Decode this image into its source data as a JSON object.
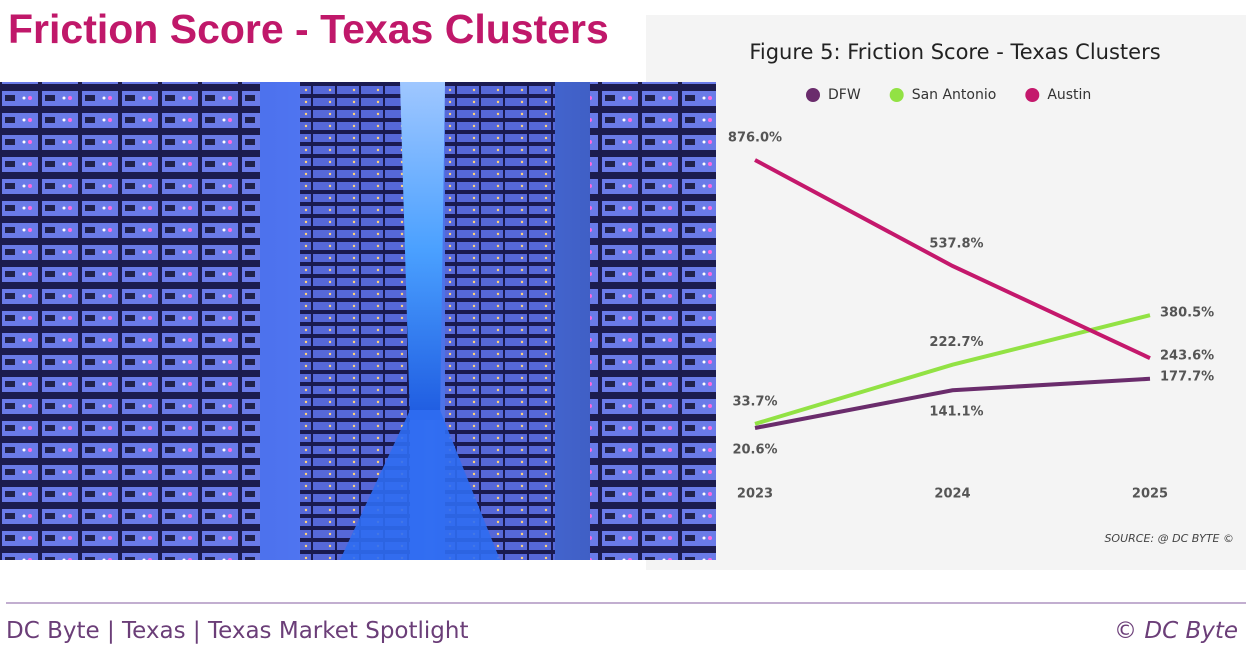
{
  "header": {
    "title": "Friction Score - Texas Clusters"
  },
  "chart_data": {
    "type": "line",
    "title": "Figure 5: Friction Score - Texas Clusters",
    "categories": [
      "2023",
      "2024",
      "2025"
    ],
    "series": [
      {
        "name": "DFW",
        "color": "#6a2c6c",
        "values": [
          20.6,
          141.1,
          177.7
        ],
        "value_labels": [
          "20.6%",
          "141.1%",
          "177.7%"
        ]
      },
      {
        "name": "San Antonio",
        "color": "#92e244",
        "values": [
          33.7,
          222.7,
          380.5
        ],
        "value_labels": [
          "33.7%",
          "222.7%",
          "380.5%"
        ]
      },
      {
        "name": "Austin",
        "color": "#c4186c",
        "values": [
          876.0,
          537.8,
          243.6
        ],
        "value_labels": [
          "876.0%",
          "537.8%",
          "243.6%"
        ]
      }
    ],
    "legend": "top",
    "source": "SOURCE: @ DC BYTE ©"
  },
  "footer": {
    "left": "DC Byte | Texas | Texas Market Spotlight",
    "right": "© DC Byte"
  }
}
